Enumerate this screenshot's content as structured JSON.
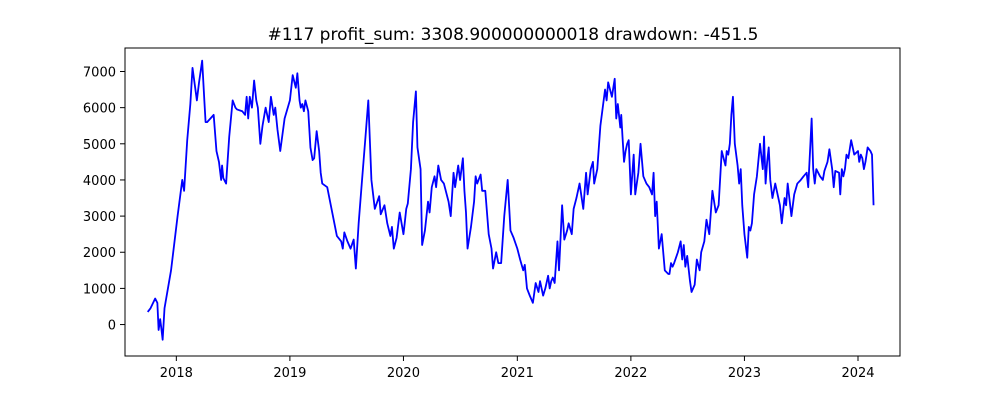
{
  "chart_data": {
    "type": "line",
    "title": "#117   profit_sum: 3308.900000000018 drawdown: -451.5",
    "xlabel": "",
    "ylabel": "",
    "x_axis": "date",
    "xlim": [
      "2017-07-20",
      "2024-05-15"
    ],
    "ylim": [
      -870,
      7650
    ],
    "grid": false,
    "x_ticks": [
      "2018",
      "2019",
      "2020",
      "2021",
      "2022",
      "2023",
      "2024"
    ],
    "y_ticks": [
      0,
      1000,
      2000,
      3000,
      4000,
      5000,
      6000,
      7000
    ],
    "series": [
      {
        "color": "#0000ff",
        "x": [
          "2017-10-01",
          "2017-10-10",
          "2017-10-25",
          "2017-11-01",
          "2017-11-05",
          "2017-11-10",
          "2017-11-14",
          "2017-11-18",
          "2017-11-24",
          "2017-12-15",
          "2018-01-05",
          "2018-01-20",
          "2018-01-26",
          "2018-02-05",
          "2018-02-15",
          "2018-02-22",
          "2018-03-08",
          "2018-03-15",
          "2018-03-25",
          "2018-04-01",
          "2018-04-05",
          "2018-04-10",
          "2018-05-01",
          "2018-05-10",
          "2018-05-18",
          "2018-05-25",
          "2018-05-28",
          "2018-06-01",
          "2018-06-10",
          "2018-06-20",
          "2018-07-01",
          "2018-07-10",
          "2018-07-15",
          "2018-08-01",
          "2018-08-10",
          "2018-08-15",
          "2018-08-20",
          "2018-08-25",
          "2018-09-01",
          "2018-09-08",
          "2018-09-15",
          "2018-09-20",
          "2018-09-28",
          "2018-10-05",
          "2018-10-15",
          "2018-10-25",
          "2018-11-01",
          "2018-11-10",
          "2018-11-15",
          "2018-11-22",
          "2018-12-01",
          "2018-12-15",
          "2019-01-01",
          "2019-01-10",
          "2019-01-20",
          "2019-01-25",
          "2019-02-01",
          "2019-02-05",
          "2019-02-10",
          "2019-02-15",
          "2019-02-20",
          "2019-03-01",
          "2019-03-08",
          "2019-03-15",
          "2019-03-20",
          "2019-03-28",
          "2019-04-05",
          "2019-04-10",
          "2019-04-15",
          "2019-05-01",
          "2019-06-01",
          "2019-06-15",
          "2019-06-20",
          "2019-06-25",
          "2019-07-05",
          "2019-07-15",
          "2019-07-25",
          "2019-08-01",
          "2019-08-10",
          "2019-08-20",
          "2019-09-01",
          "2019-09-10",
          "2019-09-20",
          "2019-10-01",
          "2019-10-15",
          "2019-10-20",
          "2019-11-01",
          "2019-11-10",
          "2019-11-20",
          "2019-11-25",
          "2019-12-01",
          "2019-12-10",
          "2019-12-20",
          "2020-01-01",
          "2020-01-05",
          "2020-01-10",
          "2020-01-15",
          "2020-01-25",
          "2020-02-01",
          "2020-02-10",
          "2020-02-15",
          "2020-02-25",
          "2020-03-01",
          "2020-03-10",
          "2020-03-20",
          "2020-03-25",
          "2020-04-01",
          "2020-04-10",
          "2020-04-15",
          "2020-04-22",
          "2020-05-01",
          "2020-05-10",
          "2020-05-25",
          "2020-06-01",
          "2020-06-10",
          "2020-06-15",
          "2020-06-25",
          "2020-07-01",
          "2020-07-10",
          "2020-07-15",
          "2020-07-20",
          "2020-07-25",
          "2020-08-05",
          "2020-08-15",
          "2020-08-20",
          "2020-08-25",
          "2020-09-05",
          "2020-09-10",
          "2020-09-20",
          "2020-10-01",
          "2020-10-10",
          "2020-10-15",
          "2020-10-25",
          "2020-11-01",
          "2020-11-10",
          "2020-11-20",
          "2020-12-01",
          "2020-12-10",
          "2020-12-20",
          "2021-01-01",
          "2021-01-10",
          "2021-01-20",
          "2021-01-25",
          "2021-02-01",
          "2021-02-10",
          "2021-02-20",
          "2021-03-01",
          "2021-03-10",
          "2021-03-15",
          "2021-03-25",
          "2021-04-01",
          "2021-04-10",
          "2021-04-15",
          "2021-04-20",
          "2021-04-25",
          "2021-05-01",
          "2021-05-10",
          "2021-05-15",
          "2021-05-25",
          "2021-06-01",
          "2021-06-10",
          "2021-06-15",
          "2021-06-25",
          "2021-07-01",
          "2021-07-10",
          "2021-07-20",
          "2021-08-01",
          "2021-08-10",
          "2021-08-15",
          "2021-08-25",
          "2021-09-01",
          "2021-09-05",
          "2021-09-15",
          "2021-09-25",
          "2021-10-01",
          "2021-10-10",
          "2021-10-15",
          "2021-10-20",
          "2021-11-01",
          "2021-11-10",
          "2021-11-15",
          "2021-11-20",
          "2021-11-28",
          "2021-12-01",
          "2021-12-05",
          "2021-12-10",
          "2021-12-15",
          "2021-12-20",
          "2021-12-25",
          "2022-01-01",
          "2022-01-10",
          "2022-01-15",
          "2022-01-20",
          "2022-01-25",
          "2022-02-01",
          "2022-02-10",
          "2022-02-20",
          "2022-03-01",
          "2022-03-10",
          "2022-03-15",
          "2022-03-20",
          "2022-03-25",
          "2022-04-01",
          "2022-04-10",
          "2022-04-20",
          "2022-05-01",
          "2022-05-05",
          "2022-05-10",
          "2022-05-15",
          "2022-05-20",
          "2022-06-01",
          "2022-06-10",
          "2022-06-15",
          "2022-06-20",
          "2022-06-25",
          "2022-07-01",
          "2022-07-10",
          "2022-07-15",
          "2022-07-25",
          "2022-08-01",
          "2022-08-10",
          "2022-08-15",
          "2022-08-25",
          "2022-09-01",
          "2022-09-10",
          "2022-09-20",
          "2022-10-01",
          "2022-10-10",
          "2022-10-20",
          "2022-11-01",
          "2022-11-05",
          "2022-11-10",
          "2022-11-15",
          "2022-11-20",
          "2022-11-25",
          "2022-12-01",
          "2022-12-10",
          "2022-12-15",
          "2022-12-20",
          "2022-12-25",
          "2023-01-01",
          "2023-01-10",
          "2023-01-15",
          "2023-01-20",
          "2023-01-25",
          "2023-02-01",
          "2023-02-10",
          "2023-02-20",
          "2023-03-01",
          "2023-03-05",
          "2023-03-10",
          "2023-03-15",
          "2023-03-20",
          "2023-03-25",
          "2023-04-01",
          "2023-04-10",
          "2023-04-15",
          "2023-04-25",
          "2023-05-01",
          "2023-05-10",
          "2023-05-15",
          "2023-05-20",
          "2023-06-01",
          "2023-06-10",
          "2023-06-20",
          "2023-07-01",
          "2023-07-10",
          "2023-07-20",
          "2023-07-25",
          "2023-08-01",
          "2023-08-05",
          "2023-08-10",
          "2023-08-15",
          "2023-08-20",
          "2023-09-01",
          "2023-09-10",
          "2023-09-15",
          "2023-09-25",
          "2023-10-01",
          "2023-10-10",
          "2023-10-15",
          "2023-10-20",
          "2023-11-01",
          "2023-11-05",
          "2023-11-10",
          "2023-11-15",
          "2023-11-20",
          "2023-11-25",
          "2023-12-01",
          "2023-12-10",
          "2023-12-20",
          "2024-01-01",
          "2024-01-05",
          "2024-01-10",
          "2024-01-15",
          "2024-01-20",
          "2024-01-25",
          "2024-02-01",
          "2024-02-10",
          "2024-02-15",
          "2024-02-20"
        ],
        "y": [
          350,
          450,
          720,
          600,
          -150,
          150,
          -120,
          -420,
          450,
          1500,
          3000,
          4000,
          3700,
          5100,
          6100,
          7100,
          6200,
          6700,
          7300,
          6200,
          5600,
          5600,
          5800,
          4800,
          4500,
          4000,
          4400,
          4050,
          3900,
          5200,
          6200,
          6000,
          5950,
          5900,
          5800,
          6300,
          5700,
          6300,
          6000,
          6750,
          6200,
          6000,
          5000,
          5500,
          6000,
          5600,
          6300,
          5800,
          6000,
          5400,
          4800,
          5700,
          6200,
          6900,
          6550,
          6950,
          6200,
          6000,
          6100,
          5900,
          6200,
          5900,
          4900,
          4550,
          4600,
          5350,
          4800,
          4200,
          3900,
          3800,
          2450,
          2300,
          2100,
          2550,
          2300,
          2100,
          2350,
          1550,
          2800,
          3900,
          5200,
          6200,
          4000,
          3200,
          3550,
          3050,
          3300,
          2800,
          2450,
          2700,
          2100,
          2400,
          3100,
          2500,
          2800,
          3200,
          3350,
          4300,
          5600,
          6450,
          4900,
          4300,
          2200,
          2600,
          3400,
          3100,
          3800,
          4100,
          3800,
          4400,
          4000,
          3900,
          3400,
          3000,
          4200,
          3800,
          4400,
          4000,
          4600,
          3700,
          3100,
          2100,
          2700,
          3400,
          4100,
          3900,
          4150,
          3700,
          3700,
          2500,
          2100,
          1550,
          2000,
          1700,
          1700,
          3000,
          4000,
          2600,
          2400,
          2100,
          1800,
          1500,
          1650,
          1000,
          800,
          600,
          1150,
          900,
          1200,
          800,
          1000,
          1350,
          1000,
          1200,
          1300,
          1150,
          2300,
          1500,
          3300,
          2350,
          2600,
          2800,
          2500,
          3200,
          3500,
          3900,
          3200,
          4200,
          3600,
          4300,
          4500,
          3900,
          4300,
          5500,
          5900,
          6500,
          6200,
          6700,
          6300,
          6800,
          5700,
          6100,
          5450,
          5800,
          5200,
          4500,
          4800,
          5000,
          5100,
          3600,
          4700,
          3600,
          3900,
          4200,
          5000,
          4100,
          3900,
          3800,
          3600,
          4200,
          3000,
          3400,
          2100,
          2500,
          1500,
          1400,
          1400,
          1700,
          1600,
          1700,
          2000,
          2300,
          1800,
          2200,
          1600,
          1900,
          1200,
          900,
          1100,
          1800,
          1500,
          2000,
          2300,
          2900,
          2500,
          3700,
          3100,
          3300,
          4800,
          4400,
          4800,
          4700,
          5000,
          5800,
          6300,
          5000,
          4400,
          3900,
          4300,
          3300,
          2500,
          1850,
          2700,
          2600,
          2800,
          3600,
          4100,
          5000,
          4300,
          5200,
          3900,
          4500,
          4900,
          4000,
          3500,
          3900,
          3700,
          3300,
          2800,
          3500,
          3300,
          3900,
          3000,
          3600,
          3900,
          4000,
          4100,
          4200,
          3800,
          5000,
          5700,
          4300,
          3900,
          4300,
          4100,
          4000,
          4250,
          4500,
          4850,
          4300,
          3800,
          4250,
          4200,
          3600,
          4300,
          4100,
          4300,
          4700,
          4600,
          5100,
          4700,
          4800,
          4500,
          4700,
          4600,
          4300,
          4500,
          4900,
          4800,
          4700,
          3300
        ]
      }
    ]
  }
}
